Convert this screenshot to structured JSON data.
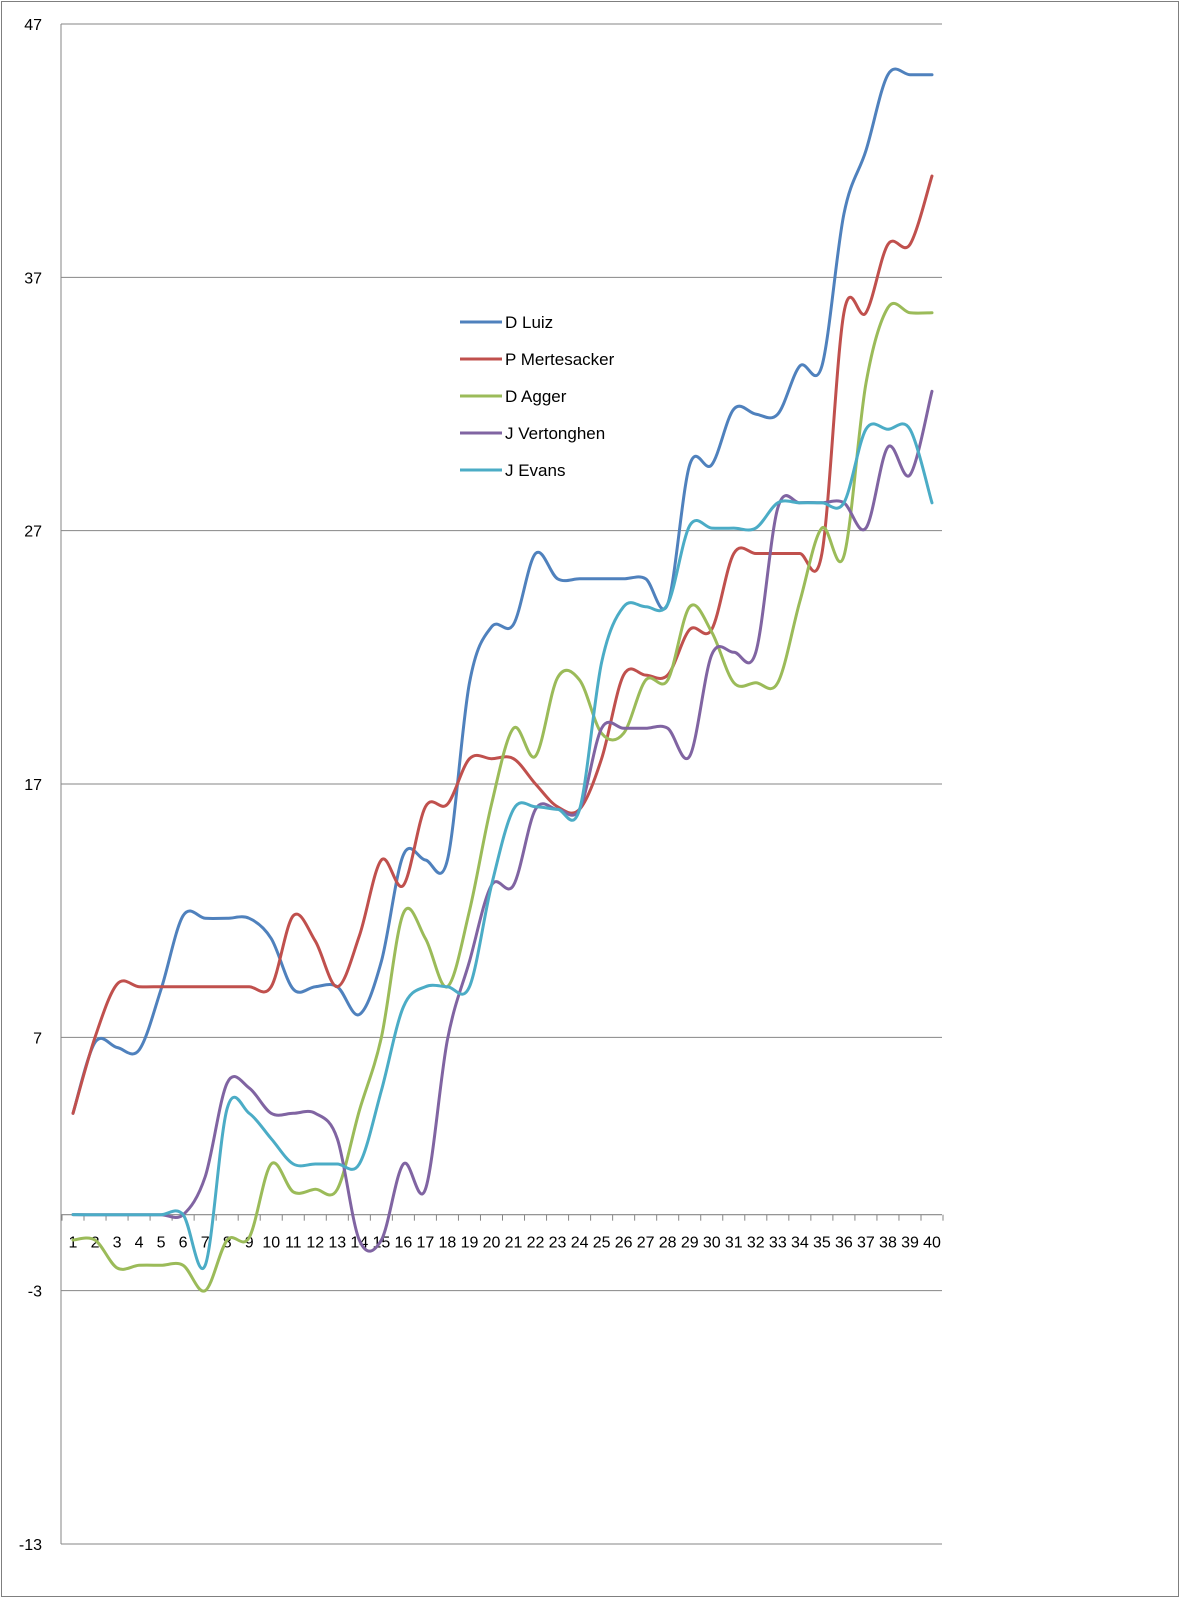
{
  "chart_data": {
    "type": "line",
    "title": "",
    "xlabel": "",
    "ylabel": "",
    "ylim": [
      -13,
      47
    ],
    "y_ticks": [
      47,
      37,
      27,
      17,
      7,
      -3,
      -13
    ],
    "grid": true,
    "legend_position": "center",
    "categories": [
      "1",
      "2",
      "3",
      "4",
      "5",
      "6",
      "7",
      "8",
      "9",
      "10",
      "11",
      "12",
      "13",
      "14",
      "15",
      "16",
      "17",
      "18",
      "19",
      "20",
      "21",
      "22",
      "23",
      "24",
      "25",
      "26",
      "27",
      "28",
      "29",
      "30",
      "31",
      "32",
      "33",
      "34",
      "35",
      "36",
      "37",
      "38",
      "39",
      "40"
    ],
    "series": [
      {
        "name": "D Luiz",
        "color": "#4f81bd",
        "values": [
          4,
          6.8,
          6.6,
          6.5,
          8.9,
          11.8,
          11.7,
          11.7,
          11.7,
          10.9,
          8.9,
          9,
          9,
          7.9,
          10,
          14.2,
          14,
          14,
          21,
          23.2,
          23.3,
          26.1,
          25.1,
          25.1,
          25.1,
          25.1,
          25.1,
          24.1,
          29.6,
          29.6,
          31.8,
          31.6,
          31.6,
          33.5,
          33.5,
          39.5,
          42,
          45,
          45,
          45
        ]
      },
      {
        "name": "P Mertesacker",
        "color": "#c0504d",
        "values": [
          4,
          7,
          9.1,
          9,
          9,
          9,
          9,
          9,
          9,
          9,
          11.8,
          10.8,
          9,
          11,
          14,
          13,
          16.1,
          16.2,
          18,
          18,
          18,
          17,
          16.1,
          16,
          18,
          21.3,
          21.3,
          21.3,
          23.1,
          23.1,
          26.1,
          26.1,
          26.1,
          26.1,
          26.1,
          35.6,
          35.6,
          38.3,
          38.3,
          41
        ]
      },
      {
        "name": "D Agger",
        "color": "#9bbb59",
        "values": [
          -1,
          -1,
          -2.1,
          -2,
          -2,
          -2,
          -3,
          -1,
          -0.9,
          2,
          0.9,
          1,
          1,
          4.1,
          7,
          11.9,
          10.9,
          9,
          12,
          16.2,
          19.2,
          18.1,
          21.2,
          21.1,
          19,
          19,
          21.1,
          21.1,
          24,
          23,
          21,
          21,
          21,
          24.2,
          27.1,
          26,
          32.8,
          35.8,
          35.6,
          35.6
        ]
      },
      {
        "name": "J Vertonghen",
        "color": "#8064a2",
        "values": [
          0,
          0,
          0,
          0,
          0,
          0,
          1.5,
          5.2,
          5,
          4,
          4,
          4,
          3,
          -1,
          -1,
          2,
          1,
          6.9,
          10,
          13,
          13,
          16,
          16,
          16,
          19.2,
          19.2,
          19.2,
          19.2,
          18.1,
          22.1,
          22.2,
          22.2,
          27.9,
          28.1,
          28.1,
          28.1,
          27.1,
          30.3,
          29.2,
          32.5
        ]
      },
      {
        "name": "J Evans",
        "color": "#4bacc6",
        "values": [
          0,
          0,
          0,
          0,
          0,
          0,
          -2,
          4.2,
          4,
          3,
          2,
          2,
          2,
          2,
          4.9,
          8.2,
          9,
          9,
          9,
          13,
          16,
          16.1,
          16,
          16,
          21.8,
          24,
          24,
          24.1,
          27.2,
          27.1,
          27.1,
          27.1,
          28.1,
          28.1,
          28.1,
          28.1,
          31,
          31,
          31,
          28.1
        ]
      }
    ]
  }
}
